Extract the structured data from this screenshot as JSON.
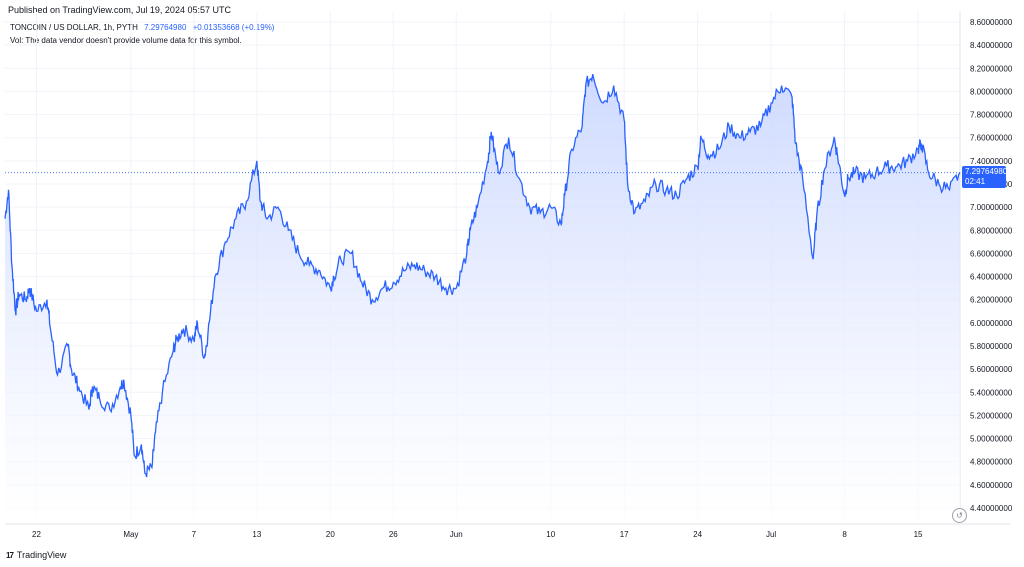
{
  "header": {
    "published": "Published on TradingView.com, Jul 19, 2024 05:57 UTC",
    "symbol": "TONCOIN / US DOLLAR, 1h, PYTH",
    "last_price": "7.29764980",
    "change": "+0.01353668 (+0.19%)",
    "volume_note": "Vol: The data vendor doesn't provide volume data for this symbol."
  },
  "price_tag": {
    "price": "7.29764980",
    "countdown": "02:41"
  },
  "footer": {
    "brand": "TradingView",
    "logo": "17"
  },
  "colors": {
    "line": "#2962ff",
    "fill_top": "#c9d6ff",
    "fill_bottom": "#ffffff",
    "grid": "#f0f3fa",
    "axis_text": "#131722"
  },
  "chart_data": {
    "type": "area",
    "title": "TONCOIN / US DOLLAR, 1h, PYTH",
    "xlabel": "",
    "ylabel": "",
    "grid": true,
    "ylim": [
      4.4,
      8.6
    ],
    "y_ticks": [
      "8.60000000",
      "8.40000000",
      "8.20000000",
      "8.00000000",
      "7.80000000",
      "7.60000000",
      "7.40000000",
      "7.20000000",
      "7.00000000",
      "6.80000000",
      "6.60000000",
      "6.40000000",
      "6.20000000",
      "6.00000000",
      "5.80000000",
      "5.60000000",
      "5.40000000",
      "5.20000000",
      "5.00000000",
      "4.80000000",
      "4.60000000",
      "4.40000000"
    ],
    "x_ticks": [
      {
        "label": "22",
        "date": "2024-04-22"
      },
      {
        "label": "May",
        "date": "2024-05-01"
      },
      {
        "label": "7",
        "date": "2024-05-07"
      },
      {
        "label": "13",
        "date": "2024-05-13"
      },
      {
        "label": "20",
        "date": "2024-05-20"
      },
      {
        "label": "26",
        "date": "2024-05-26"
      },
      {
        "label": "Jun",
        "date": "2024-06-01"
      },
      {
        "label": "10",
        "date": "2024-06-10"
      },
      {
        "label": "17",
        "date": "2024-06-17"
      },
      {
        "label": "24",
        "date": "2024-06-24"
      },
      {
        "label": "Jul",
        "date": "2024-07-01"
      },
      {
        "label": "8",
        "date": "2024-07-08"
      },
      {
        "label": "15",
        "date": "2024-07-15"
      }
    ],
    "series": [
      {
        "points": [
          [
            "2024-04-19",
            6.9
          ],
          [
            "2024-04-19",
            7.15
          ],
          [
            "2024-04-19",
            6.5
          ],
          [
            "2024-04-20",
            6.1
          ],
          [
            "2024-04-20",
            6.25
          ],
          [
            "2024-04-21",
            6.2
          ],
          [
            "2024-04-21",
            6.3
          ],
          [
            "2024-04-22",
            6.1
          ],
          [
            "2024-04-23",
            6.2
          ],
          [
            "2024-04-23",
            5.95
          ],
          [
            "2024-04-24",
            5.55
          ],
          [
            "2024-04-25",
            5.8
          ],
          [
            "2024-04-25",
            5.6
          ],
          [
            "2024-04-26",
            5.45
          ],
          [
            "2024-04-27",
            5.25
          ],
          [
            "2024-04-27",
            5.45
          ],
          [
            "2024-04-28",
            5.35
          ],
          [
            "2024-04-29",
            5.25
          ],
          [
            "2024-04-30",
            5.45
          ],
          [
            "2024-04-30",
            5.5
          ],
          [
            "2024-05-01",
            5.2
          ],
          [
            "2024-05-01",
            4.85
          ],
          [
            "2024-05-02",
            4.95
          ],
          [
            "2024-05-02",
            4.7
          ],
          [
            "2024-05-03",
            4.75
          ],
          [
            "2024-05-03",
            5.05
          ],
          [
            "2024-05-04",
            5.4
          ],
          [
            "2024-05-05",
            5.75
          ],
          [
            "2024-05-05",
            5.85
          ],
          [
            "2024-05-06",
            5.95
          ],
          [
            "2024-05-07",
            5.85
          ],
          [
            "2024-05-07",
            6.0
          ],
          [
            "2024-05-08",
            5.7
          ],
          [
            "2024-05-08",
            5.9
          ],
          [
            "2024-05-09",
            6.4
          ],
          [
            "2024-05-10",
            6.7
          ],
          [
            "2024-05-11",
            6.9
          ],
          [
            "2024-05-12",
            7.05
          ],
          [
            "2024-05-13",
            7.4
          ],
          [
            "2024-05-13",
            7.05
          ],
          [
            "2024-05-14",
            6.9
          ],
          [
            "2024-05-15",
            7.0
          ],
          [
            "2024-05-16",
            6.8
          ],
          [
            "2024-05-17",
            6.6
          ],
          [
            "2024-05-18",
            6.5
          ],
          [
            "2024-05-19",
            6.45
          ],
          [
            "2024-05-20",
            6.3
          ],
          [
            "2024-05-20",
            6.4
          ],
          [
            "2024-05-21",
            6.55
          ],
          [
            "2024-05-22",
            6.6
          ],
          [
            "2024-05-23",
            6.35
          ],
          [
            "2024-05-24",
            6.2
          ],
          [
            "2024-05-25",
            6.3
          ],
          [
            "2024-05-26",
            6.35
          ],
          [
            "2024-05-27",
            6.45
          ],
          [
            "2024-05-28",
            6.5
          ],
          [
            "2024-05-29",
            6.45
          ],
          [
            "2024-05-30",
            6.4
          ],
          [
            "2024-05-31",
            6.3
          ],
          [
            "2024-06-01",
            6.3
          ],
          [
            "2024-06-02",
            6.6
          ],
          [
            "2024-06-02",
            6.8
          ],
          [
            "2024-06-03",
            7.0
          ],
          [
            "2024-06-04",
            7.4
          ],
          [
            "2024-06-04",
            7.65
          ],
          [
            "2024-06-05",
            7.3
          ],
          [
            "2024-06-06",
            7.6
          ],
          [
            "2024-06-07",
            7.25
          ],
          [
            "2024-06-08",
            7.0
          ],
          [
            "2024-06-09",
            6.95
          ],
          [
            "2024-06-10",
            7.0
          ],
          [
            "2024-06-11",
            6.85
          ],
          [
            "2024-06-11",
            7.1
          ],
          [
            "2024-06-12",
            7.5
          ],
          [
            "2024-06-13",
            7.7
          ],
          [
            "2024-06-13",
            8.05
          ],
          [
            "2024-06-14",
            8.15
          ],
          [
            "2024-06-15",
            7.9
          ],
          [
            "2024-06-16",
            8.05
          ],
          [
            "2024-06-17",
            7.75
          ],
          [
            "2024-06-17",
            7.2
          ],
          [
            "2024-06-18",
            6.95
          ],
          [
            "2024-06-19",
            7.05
          ],
          [
            "2024-06-20",
            7.2
          ],
          [
            "2024-06-21",
            7.15
          ],
          [
            "2024-06-22",
            7.1
          ],
          [
            "2024-06-23",
            7.25
          ],
          [
            "2024-06-24",
            7.35
          ],
          [
            "2024-06-24",
            7.6
          ],
          [
            "2024-06-25",
            7.45
          ],
          [
            "2024-06-26",
            7.5
          ],
          [
            "2024-06-27",
            7.7
          ],
          [
            "2024-06-28",
            7.6
          ],
          [
            "2024-06-29",
            7.65
          ],
          [
            "2024-06-30",
            7.7
          ],
          [
            "2024-07-01",
            7.9
          ],
          [
            "2024-07-02",
            8.05
          ],
          [
            "2024-07-03",
            7.95
          ],
          [
            "2024-07-03",
            7.55
          ],
          [
            "2024-07-04",
            7.25
          ],
          [
            "2024-07-05",
            6.55
          ],
          [
            "2024-07-05",
            6.9
          ],
          [
            "2024-07-06",
            7.3
          ],
          [
            "2024-07-07",
            7.6
          ],
          [
            "2024-07-07",
            7.45
          ],
          [
            "2024-07-08",
            7.1
          ],
          [
            "2024-07-08",
            7.25
          ],
          [
            "2024-07-09",
            7.3
          ],
          [
            "2024-07-10",
            7.25
          ],
          [
            "2024-07-11",
            7.3
          ],
          [
            "2024-07-12",
            7.35
          ],
          [
            "2024-07-13",
            7.35
          ],
          [
            "2024-07-14",
            7.4
          ],
          [
            "2024-07-15",
            7.5
          ],
          [
            "2024-07-15",
            7.55
          ],
          [
            "2024-07-16",
            7.3
          ],
          [
            "2024-07-17",
            7.2
          ],
          [
            "2024-07-18",
            7.15
          ],
          [
            "2024-07-19",
            7.3
          ]
        ]
      }
    ]
  }
}
